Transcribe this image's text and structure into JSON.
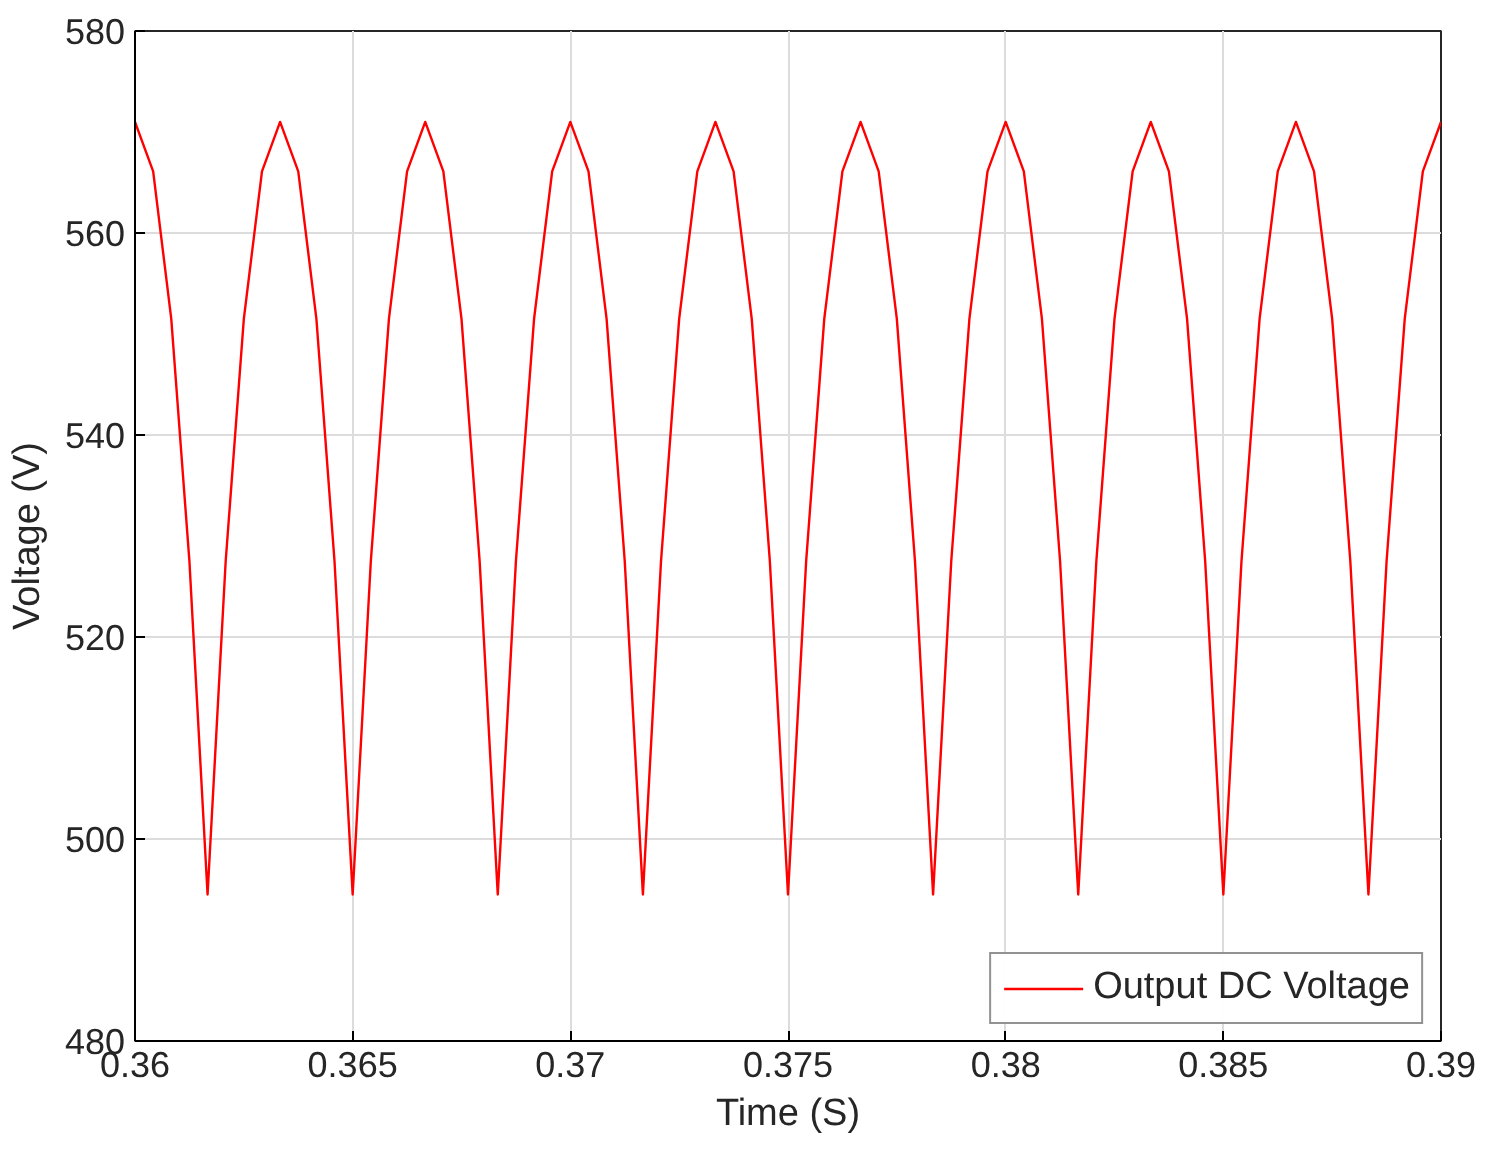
{
  "chart_data": {
    "type": "line",
    "xlabel": "Time (S)",
    "ylabel": "Voltage (V)",
    "xlim": [
      0.36,
      0.39
    ],
    "xticks": [
      0.36,
      0.365,
      0.37,
      0.375,
      0.38,
      0.385,
      0.39
    ],
    "ylim": [
      480,
      580
    ],
    "yticks": [
      480,
      500,
      520,
      540,
      560,
      580
    ],
    "grid": true,
    "legend": "bottom right",
    "line_style": "solid",
    "marker": "none",
    "series": [
      {
        "name": "Output DC Voltage",
        "color": "#ff0000",
        "x": [
          0.36,
          0.360417,
          0.360833,
          0.36125,
          0.361667,
          0.362083,
          0.3625,
          0.362917,
          0.363333,
          0.36375,
          0.364167,
          0.364583,
          0.365,
          0.365417,
          0.365833,
          0.36625,
          0.366667,
          0.367083,
          0.3675,
          0.367917,
          0.368333,
          0.36875,
          0.369167,
          0.369583,
          0.37,
          0.370417,
          0.370833,
          0.37125,
          0.371667,
          0.372083,
          0.3725,
          0.372917,
          0.373333,
          0.37375,
          0.374167,
          0.374583,
          0.375,
          0.375417,
          0.375833,
          0.37625,
          0.376667,
          0.377083,
          0.3775,
          0.377917,
          0.378333,
          0.37875,
          0.379167,
          0.379583,
          0.38,
          0.380417,
          0.380833,
          0.38125,
          0.381667,
          0.382083,
          0.3825,
          0.382917,
          0.383333,
          0.38375,
          0.384167,
          0.384583,
          0.385,
          0.385417,
          0.385833,
          0.38625,
          0.386667,
          0.387083,
          0.3875,
          0.387917,
          0.388333,
          0.38875,
          0.389167,
          0.389583,
          0.39
        ],
        "values": [
          571,
          566.1,
          551.5,
          527.5,
          494.5,
          527.5,
          551.5,
          566.1,
          571,
          566.1,
          551.5,
          527.5,
          494.5,
          527.5,
          551.5,
          566.1,
          571,
          566.1,
          551.5,
          527.5,
          494.5,
          527.5,
          551.5,
          566.1,
          571,
          566.1,
          551.5,
          527.5,
          494.5,
          527.5,
          551.5,
          566.1,
          571,
          566.1,
          551.5,
          527.5,
          494.5,
          527.5,
          551.5,
          566.1,
          571,
          566.1,
          551.5,
          527.5,
          494.5,
          527.5,
          551.5,
          566.1,
          571,
          566.1,
          551.5,
          527.5,
          494.5,
          527.5,
          551.5,
          566.1,
          571,
          566.1,
          551.5,
          527.5,
          494.5,
          527.5,
          551.5,
          566.1,
          571,
          566.1,
          551.5,
          527.5,
          494.5,
          527.5,
          551.5,
          566.1,
          571
        ]
      }
    ]
  }
}
